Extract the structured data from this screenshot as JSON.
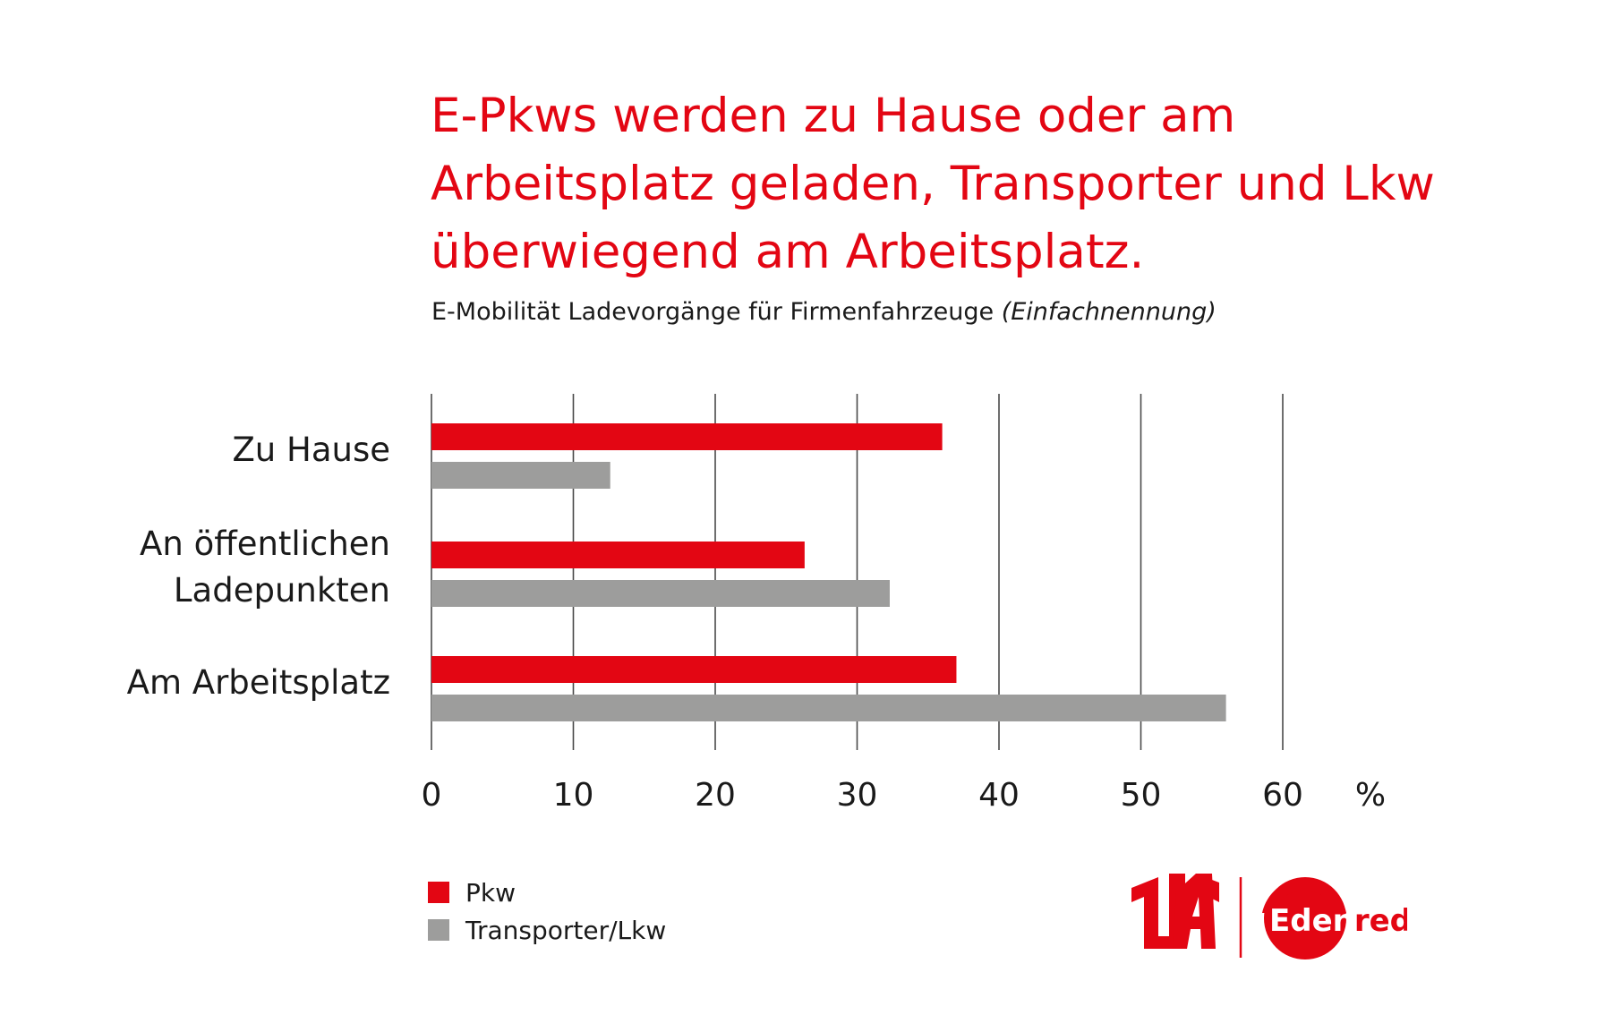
{
  "title": "E-Pkws werden zu Hause oder am Arbeitsplatz geladen, Transporter und Lkw überwiegend am Arbeitsplatz.",
  "subtitle": "E-Mobilität Ladevorgänge für Firmenfahrzeuge",
  "subtitle_note": "(Einfachnennung)",
  "colors": {
    "accent": "#e30613",
    "secondary": "#9d9d9c",
    "grid": "#4a4a4a"
  },
  "logos": {
    "uta": "UTA",
    "edenred": "Edenred"
  },
  "chart_data": {
    "type": "bar",
    "orientation": "horizontal",
    "categories": [
      [
        "Zu Hause"
      ],
      [
        "An öffentlichen",
        "Ladepunkten"
      ],
      [
        "Am Arbeitsplatz"
      ]
    ],
    "series": [
      {
        "name": "Pkw",
        "color": "#e30613",
        "values": [
          36,
          26.3,
          37
        ]
      },
      {
        "name": "Transporter/Lkw",
        "color": "#9d9d9c",
        "values": [
          12.6,
          32.3,
          56
        ]
      }
    ],
    "xlim": [
      0,
      60
    ],
    "xticks": [
      0,
      10,
      20,
      30,
      40,
      50,
      60
    ],
    "xunit": "%",
    "grid": true,
    "legend_position": "bottom-left"
  }
}
